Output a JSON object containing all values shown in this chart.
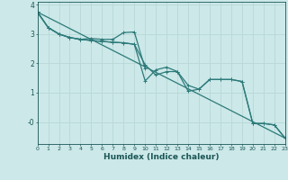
{
  "xlabel": "Humidex (Indice chaleur)",
  "bg_color": "#cce8e8",
  "line_color": "#2d7a7a",
  "grid_color": "#b8d8d8",
  "line1": {
    "x": [
      0,
      1,
      2,
      3,
      4,
      5,
      6,
      7,
      8,
      9,
      10
    ],
    "y": [
      3.75,
      3.22,
      3.0,
      2.88,
      2.82,
      2.85,
      2.82,
      2.82,
      3.05,
      3.07,
      1.82
    ]
  },
  "line2": {
    "x": [
      0,
      1,
      2,
      3,
      4,
      5,
      6,
      7,
      8,
      9,
      10,
      11,
      12,
      13,
      14,
      15,
      16,
      17,
      18,
      19,
      20,
      21,
      22,
      23
    ],
    "y": [
      3.75,
      3.22,
      3.0,
      2.88,
      2.82,
      2.78,
      2.75,
      2.72,
      2.7,
      2.65,
      1.4,
      1.78,
      1.87,
      1.72,
      1.05,
      1.12,
      1.45,
      1.45,
      1.45,
      1.38,
      -0.05,
      -0.05,
      -0.1,
      -0.55
    ]
  },
  "line3": {
    "x": [
      0,
      1,
      2,
      3,
      4,
      5,
      6,
      7,
      8,
      9,
      10,
      11,
      12,
      13,
      14,
      15,
      16,
      17,
      18,
      19,
      20,
      21,
      22,
      23
    ],
    "y": [
      3.75,
      3.22,
      3.0,
      2.88,
      2.82,
      2.78,
      2.75,
      2.72,
      2.7,
      2.65,
      1.95,
      1.6,
      1.72,
      1.72,
      1.25,
      1.12,
      1.45,
      1.45,
      1.45,
      1.38,
      -0.05,
      -0.05,
      -0.1,
      -0.55
    ]
  },
  "line4": {
    "x": [
      0,
      23
    ],
    "y": [
      3.75,
      -0.55
    ]
  },
  "xlim": [
    0,
    23
  ],
  "ylim": [
    -0.75,
    4.1
  ],
  "xticks": [
    0,
    1,
    2,
    3,
    4,
    5,
    6,
    7,
    8,
    9,
    10,
    11,
    12,
    13,
    14,
    15,
    16,
    17,
    18,
    19,
    20,
    21,
    22,
    23
  ],
  "yticks": [
    0,
    1,
    2,
    3,
    4
  ],
  "ytick_labels": [
    "-0",
    "1",
    "2",
    "3",
    "4"
  ],
  "font_color": "#1a5555",
  "marker_size": 2.5,
  "line_width": 0.9
}
